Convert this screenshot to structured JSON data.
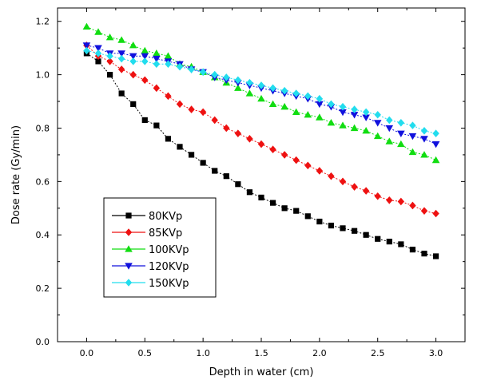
{
  "chart_data": {
    "type": "line",
    "xlabel": "Depth in water (cm)",
    "ylabel": "Dose rate (Gy/min)",
    "xlim": [
      -0.25,
      3.25
    ],
    "ylim": [
      0.0,
      1.25
    ],
    "xticks": [
      0.0,
      0.5,
      1.0,
      1.5,
      2.0,
      2.5,
      3.0
    ],
    "xtick_labels": [
      "0.0",
      "0.5",
      "1.0",
      "1.5",
      "2.0",
      "2.5",
      "3.0"
    ],
    "yticks": [
      0.0,
      0.2,
      0.4,
      0.6,
      0.8,
      1.0,
      1.2
    ],
    "ytick_labels": [
      "0.0",
      "0.2",
      "0.4",
      "0.6",
      "0.8",
      "1.0",
      "1.2"
    ],
    "grid": false,
    "legend_position": "lower-left",
    "x": [
      0.0,
      0.1,
      0.2,
      0.3,
      0.4,
      0.5,
      0.6,
      0.7,
      0.8,
      0.9,
      1.0,
      1.1,
      1.2,
      1.3,
      1.4,
      1.5,
      1.6,
      1.7,
      1.8,
      1.9,
      2.0,
      2.1,
      2.2,
      2.3,
      2.4,
      2.5,
      2.6,
      2.7,
      2.8,
      2.9,
      3.0
    ],
    "series": [
      {
        "name": "80KVp",
        "color": "#000000",
        "marker": "square",
        "values": [
          1.08,
          1.05,
          1.0,
          0.93,
          0.89,
          0.83,
          0.81,
          0.76,
          0.73,
          0.7,
          0.67,
          0.64,
          0.62,
          0.59,
          0.56,
          0.54,
          0.52,
          0.5,
          0.49,
          0.47,
          0.45,
          0.435,
          0.425,
          0.415,
          0.4,
          0.385,
          0.375,
          0.365,
          0.345,
          0.33,
          0.32
        ]
      },
      {
        "name": "85KVp",
        "color": "#ee1111",
        "marker": "diamond",
        "values": [
          1.11,
          1.07,
          1.05,
          1.02,
          1.0,
          0.98,
          0.95,
          0.92,
          0.89,
          0.87,
          0.86,
          0.83,
          0.8,
          0.78,
          0.76,
          0.74,
          0.72,
          0.7,
          0.68,
          0.66,
          0.64,
          0.62,
          0.6,
          0.58,
          0.565,
          0.545,
          0.53,
          0.525,
          0.51,
          0.49,
          0.48
        ]
      },
      {
        "name": "100KVp",
        "color": "#11dd11",
        "marker": "triangle-up",
        "values": [
          1.18,
          1.16,
          1.14,
          1.13,
          1.11,
          1.09,
          1.08,
          1.07,
          1.04,
          1.03,
          1.01,
          0.99,
          0.97,
          0.95,
          0.93,
          0.91,
          0.89,
          0.88,
          0.86,
          0.85,
          0.84,
          0.82,
          0.81,
          0.8,
          0.79,
          0.77,
          0.75,
          0.74,
          0.71,
          0.7,
          0.68
        ]
      },
      {
        "name": "120KVp",
        "color": "#1111dd",
        "marker": "triangle-down",
        "values": [
          1.11,
          1.1,
          1.08,
          1.08,
          1.07,
          1.07,
          1.06,
          1.05,
          1.04,
          1.02,
          1.01,
          0.99,
          0.98,
          0.97,
          0.96,
          0.95,
          0.94,
          0.93,
          0.92,
          0.91,
          0.89,
          0.88,
          0.86,
          0.85,
          0.84,
          0.82,
          0.8,
          0.78,
          0.77,
          0.76,
          0.74
        ]
      },
      {
        "name": "150KVp",
        "color": "#22ddee",
        "marker": "diamond",
        "values": [
          1.09,
          1.08,
          1.07,
          1.06,
          1.05,
          1.05,
          1.04,
          1.04,
          1.03,
          1.02,
          1.01,
          1.0,
          0.99,
          0.98,
          0.97,
          0.96,
          0.95,
          0.94,
          0.93,
          0.92,
          0.91,
          0.89,
          0.88,
          0.87,
          0.86,
          0.85,
          0.83,
          0.82,
          0.81,
          0.79,
          0.78
        ]
      }
    ]
  }
}
